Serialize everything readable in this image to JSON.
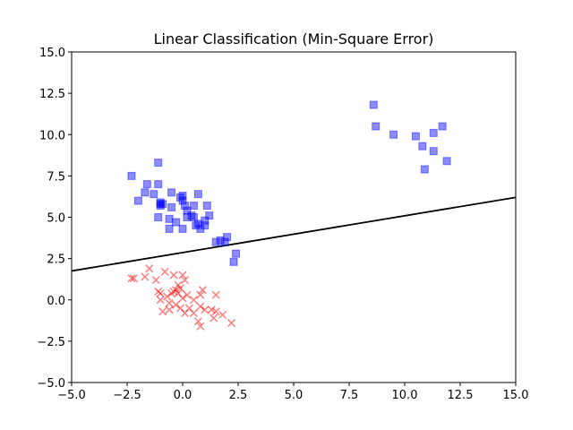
{
  "chart_data": {
    "type": "scatter",
    "title": "Linear Classification (Min-Square Error)",
    "xlabel": "",
    "ylabel": "",
    "xlim": [
      -5,
      15
    ],
    "ylim": [
      -5,
      15
    ],
    "grid": false,
    "legend": "none",
    "xticks": [
      -5,
      -2.5,
      0,
      2.5,
      5,
      7.5,
      10,
      12.5,
      15
    ],
    "yticks": [
      -5,
      -2.5,
      0,
      2.5,
      5,
      7.5,
      10,
      12.5,
      15
    ],
    "xtick_labels": [
      "−5.0",
      "−2.5",
      "0.0",
      "2.5",
      "5.0",
      "7.5",
      "10.0",
      "12.5",
      "15.0"
    ],
    "ytick_labels": [
      "−5.0",
      "−2.5",
      "0.0",
      "2.5",
      "5.0",
      "7.5",
      "10.0",
      "12.5",
      "15.0"
    ],
    "series": [
      {
        "marker": "square",
        "color": "#0000ff",
        "opacity": 0.45,
        "points": [
          [
            -2.3,
            7.5
          ],
          [
            -1.1,
            8.3
          ],
          [
            -1.6,
            7.0
          ],
          [
            -1.1,
            7.0
          ],
          [
            -2.0,
            6.0
          ],
          [
            -1.7,
            6.5
          ],
          [
            -1.3,
            6.4
          ],
          [
            -0.5,
            6.5
          ],
          [
            0.0,
            6.3
          ],
          [
            -0.1,
            6.2
          ],
          [
            0.0,
            6.0
          ],
          [
            0.1,
            5.7
          ],
          [
            -1.0,
            5.9
          ],
          [
            -1.0,
            5.8
          ],
          [
            -0.9,
            5.8
          ],
          [
            -1.0,
            5.7
          ],
          [
            -0.5,
            5.6
          ],
          [
            0.2,
            5.4
          ],
          [
            0.5,
            5.7
          ],
          [
            0.7,
            6.4
          ],
          [
            1.1,
            5.7
          ],
          [
            -1.1,
            5.0
          ],
          [
            -0.6,
            4.9
          ],
          [
            -0.3,
            4.7
          ],
          [
            0.2,
            5.0
          ],
          [
            0.4,
            5.1
          ],
          [
            0.5,
            5.0
          ],
          [
            0.7,
            4.6
          ],
          [
            0.8,
            4.3
          ],
          [
            1.0,
            4.5
          ],
          [
            1.0,
            4.8
          ],
          [
            1.2,
            5.1
          ],
          [
            0.6,
            4.5
          ],
          [
            -0.6,
            4.3
          ],
          [
            0.0,
            4.3
          ],
          [
            1.5,
            3.5
          ],
          [
            1.7,
            3.6
          ],
          [
            1.9,
            3.5
          ],
          [
            2.0,
            3.8
          ],
          [
            2.4,
            2.8
          ],
          [
            2.3,
            2.3
          ],
          [
            8.6,
            11.8
          ],
          [
            8.7,
            10.5
          ],
          [
            9.5,
            10.0
          ],
          [
            10.5,
            9.9
          ],
          [
            10.8,
            9.3
          ],
          [
            11.3,
            10.1
          ],
          [
            11.7,
            10.5
          ],
          [
            11.3,
            9.0
          ],
          [
            10.9,
            7.9
          ],
          [
            11.9,
            8.4
          ]
        ]
      },
      {
        "marker": "x",
        "color": "#ff0000",
        "opacity": 0.5,
        "points": [
          [
            -2.3,
            1.3
          ],
          [
            -2.2,
            1.3
          ],
          [
            -1.5,
            1.9
          ],
          [
            -1.7,
            1.4
          ],
          [
            -1.2,
            1.2
          ],
          [
            -0.8,
            1.7
          ],
          [
            -0.4,
            1.5
          ],
          [
            0.0,
            1.5
          ],
          [
            0.1,
            1.2
          ],
          [
            -0.2,
            0.9
          ],
          [
            -0.1,
            0.7
          ],
          [
            -0.3,
            0.6
          ],
          [
            -0.4,
            0.5
          ],
          [
            -0.5,
            0.4
          ],
          [
            -0.2,
            0.4
          ],
          [
            -0.7,
            0.2
          ],
          [
            -1.0,
            0.4
          ],
          [
            -1.0,
            0.0
          ],
          [
            -0.6,
            -0.2
          ],
          [
            -0.3,
            -0.3
          ],
          [
            0.0,
            0.1
          ],
          [
            0.2,
            0.3
          ],
          [
            0.5,
            0.0
          ],
          [
            0.8,
            0.3
          ],
          [
            0.9,
            0.6
          ],
          [
            0.8,
            -0.4
          ],
          [
            1.0,
            -0.6
          ],
          [
            1.3,
            -0.6
          ],
          [
            1.5,
            0.3
          ],
          [
            1.5,
            -0.7
          ],
          [
            1.4,
            -1.1
          ],
          [
            1.8,
            -0.9
          ],
          [
            2.2,
            -1.4
          ],
          [
            0.3,
            -0.5
          ],
          [
            0.5,
            -0.8
          ],
          [
            0.7,
            -1.3
          ],
          [
            0.8,
            -1.6
          ],
          [
            -0.6,
            -0.6
          ],
          [
            -0.9,
            -0.7
          ],
          [
            -0.1,
            -0.5
          ],
          [
            0.1,
            -0.8
          ],
          [
            -1.1,
            0.5
          ]
        ]
      }
    ],
    "line": {
      "color": "#000000",
      "points": [
        [
          -5,
          1.75
        ],
        [
          15,
          6.2
        ]
      ]
    }
  }
}
